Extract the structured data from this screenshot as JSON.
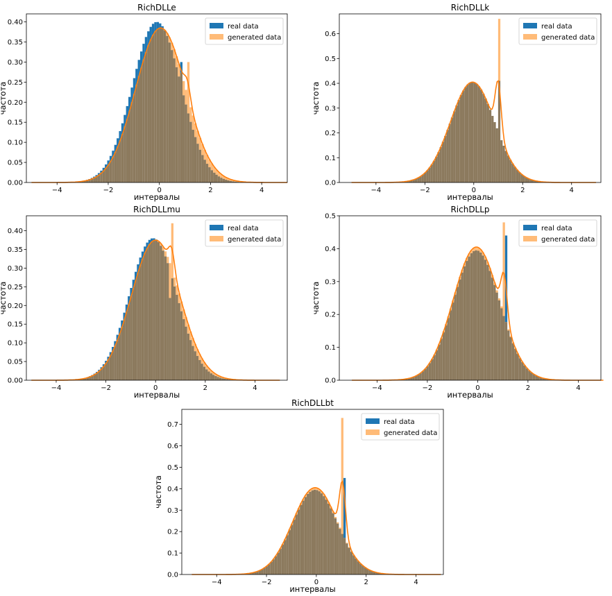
{
  "figure": {
    "legend_labels": [
      "real data",
      "generated data"
    ],
    "colors": {
      "real": "#1f77b4",
      "generated": "#ff7f0e",
      "generated_bar": "#ffbb78",
      "overlap": "#8c7a5e"
    }
  },
  "chart_data": [
    {
      "type": "bar",
      "title": "RichDLLe",
      "xlabel": "интервалы",
      "ylabel": "частота",
      "xlim": [
        -5.2,
        5.0
      ],
      "ylim": [
        0,
        0.42
      ],
      "xticks": [
        -4,
        -2,
        0,
        2,
        4
      ],
      "yticks": [
        0.0,
        0.05,
        0.1,
        0.15,
        0.2,
        0.25,
        0.3,
        0.35,
        0.4
      ],
      "ytick_labels": [
        "0.00",
        "0.05",
        "0.10",
        "0.15",
        "0.20",
        "0.25",
        "0.30",
        "0.35",
        "0.40"
      ],
      "legend": "top-right",
      "series": [
        {
          "name": "real data",
          "kind": "histogram",
          "mean": -0.1,
          "sigma": 0.95,
          "peak": 0.4,
          "spikes": [
            {
              "x": 0.9,
              "value": 0.3
            }
          ]
        },
        {
          "name": "generated data",
          "kind": "histogram+kde",
          "mean": 0.05,
          "sigma": 0.98,
          "peak": 0.385,
          "spikes": [
            {
              "x": 1.1,
              "value": 0.3
            }
          ]
        }
      ]
    },
    {
      "type": "bar",
      "title": "RichDLLk",
      "xlabel": "интервалы",
      "ylabel": "частота",
      "xlim": [
        -5.5,
        5.2
      ],
      "ylim": [
        0,
        0.68
      ],
      "xticks": [
        -4,
        -2,
        0,
        2,
        4
      ],
      "yticks": [
        0.0,
        0.1,
        0.2,
        0.3,
        0.4,
        0.5,
        0.6
      ],
      "ytick_labels": [
        "0.0",
        "0.1",
        "0.2",
        "0.3",
        "0.4",
        "0.5",
        "0.6"
      ],
      "legend": "top-right",
      "series": [
        {
          "name": "real data",
          "kind": "histogram",
          "mean": -0.05,
          "sigma": 0.9,
          "peak": 0.405,
          "spikes": [
            {
              "x": 1.05,
              "value": 0.41
            }
          ]
        },
        {
          "name": "generated data",
          "kind": "histogram+kde",
          "mean": -0.05,
          "sigma": 0.9,
          "peak": 0.405,
          "spikes": [
            {
              "x": 1.0,
              "value": 0.66
            }
          ]
        }
      ]
    },
    {
      "type": "bar",
      "title": "RichDLLmu",
      "xlabel": "интервалы",
      "ylabel": "частота",
      "xlim": [
        -5.2,
        5.3
      ],
      "ylim": [
        0,
        0.44
      ],
      "xticks": [
        -4,
        -2,
        0,
        2,
        4
      ],
      "yticks": [
        0.0,
        0.05,
        0.1,
        0.15,
        0.2,
        0.25,
        0.3,
        0.35,
        0.4
      ],
      "ytick_labels": [
        "0.00",
        "0.05",
        "0.10",
        "0.15",
        "0.20",
        "0.25",
        "0.30",
        "0.35",
        "0.40"
      ],
      "legend": "top-right",
      "series": [
        {
          "name": "real data",
          "kind": "histogram",
          "mean": -0.1,
          "sigma": 0.95,
          "peak": 0.38,
          "spikes": [
            {
              "x": 0.55,
              "value": 0.22
            }
          ]
        },
        {
          "name": "generated data",
          "kind": "histogram+kde",
          "mean": 0.0,
          "sigma": 0.97,
          "peak": 0.375,
          "spikes": [
            {
              "x": 0.65,
              "value": 0.42
            }
          ]
        }
      ]
    },
    {
      "type": "bar",
      "title": "RichDLLp",
      "xlabel": "интервалы",
      "ylabel": "частота",
      "xlim": [
        -5.5,
        4.9
      ],
      "ylim": [
        0,
        0.5
      ],
      "xticks": [
        -4,
        -2,
        0,
        2,
        4
      ],
      "yticks": [
        0.0,
        0.1,
        0.2,
        0.3,
        0.4,
        0.5
      ],
      "ytick_labels": [
        "0.0",
        "0.1",
        "0.2",
        "0.3",
        "0.4",
        "0.5"
      ],
      "legend": "top-right",
      "series": [
        {
          "name": "real data",
          "kind": "histogram",
          "mean": -0.05,
          "sigma": 0.92,
          "peak": 0.395,
          "spikes": [
            {
              "x": 1.15,
              "value": 0.44
            }
          ]
        },
        {
          "name": "generated data",
          "kind": "histogram+kde",
          "mean": -0.05,
          "sigma": 0.92,
          "peak": 0.405,
          "spikes": [
            {
              "x": 1.05,
              "value": 0.48
            }
          ]
        }
      ]
    },
    {
      "type": "bar",
      "title": "RichDLLbt",
      "xlabel": "интервалы",
      "ylabel": "частота",
      "xlim": [
        -5.4,
        5.1
      ],
      "ylim": [
        0,
        0.77
      ],
      "xticks": [
        -4,
        -2,
        0,
        2,
        4
      ],
      "yticks": [
        0.0,
        0.1,
        0.2,
        0.3,
        0.4,
        0.5,
        0.6,
        0.7
      ],
      "ytick_labels": [
        "0.0",
        "0.1",
        "0.2",
        "0.3",
        "0.4",
        "0.5",
        "0.6",
        "0.7"
      ],
      "legend": "top-right",
      "series": [
        {
          "name": "real data",
          "kind": "histogram",
          "mean": -0.05,
          "sigma": 0.9,
          "peak": 0.395,
          "spikes": [
            {
              "x": 1.1,
              "value": 0.45
            }
          ]
        },
        {
          "name": "generated data",
          "kind": "histogram+kde",
          "mean": -0.05,
          "sigma": 0.9,
          "peak": 0.405,
          "spikes": [
            {
              "x": 1.05,
              "value": 0.73
            }
          ]
        }
      ]
    }
  ]
}
